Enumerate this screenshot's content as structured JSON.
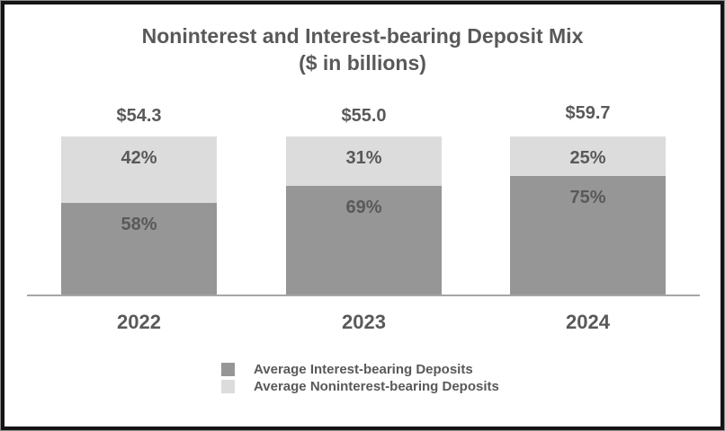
{
  "title": {
    "line1": "Noninterest and Interest-bearing Deposit Mix",
    "line2": "($ in billions)"
  },
  "chart_data": {
    "type": "bar",
    "variant": "100-percent-stacked-column",
    "title": "Noninterest and Interest-bearing Deposit Mix",
    "subtitle": "($ in billions)",
    "categories": [
      "2022",
      "2023",
      "2024"
    ],
    "totals": [
      54.3,
      55.0,
      59.7
    ],
    "total_labels": [
      "$54.3",
      "$55.0",
      "$59.7"
    ],
    "series": [
      {
        "name": "Average Interest-bearing Deposits",
        "values_pct": [
          58,
          69,
          75
        ],
        "color": "#969696"
      },
      {
        "name": "Average Noninterest-bearing Deposits",
        "values_pct": [
          42,
          31,
          25
        ],
        "color": "#DCDCDC"
      }
    ],
    "bars": [
      {
        "year": "2022",
        "total_label": "$54.3",
        "interest_pct": 58,
        "interest_label": "58%",
        "noninterest_pct": 42,
        "noninterest_label": "42%"
      },
      {
        "year": "2023",
        "total_label": "$55.0",
        "interest_pct": 69,
        "interest_label": "69%",
        "noninterest_pct": 31,
        "noninterest_label": "31%"
      },
      {
        "year": "2024",
        "total_label": "$59.7",
        "interest_pct": 75,
        "interest_label": "75%",
        "noninterest_pct": 25,
        "noninterest_label": "25%"
      }
    ],
    "legend_position": "bottom",
    "grid": false,
    "axis_line_color": "#A6A6A6"
  },
  "legend": {
    "items": [
      {
        "label": "Average Interest-bearing Deposits",
        "color": "#969696"
      },
      {
        "label": "Average Noninterest-bearing Deposits",
        "color": "#DCDCDC"
      }
    ]
  },
  "colors": {
    "text": "#595959",
    "interest_bar": "#969696",
    "noninterest_bar": "#DCDCDC",
    "axis_line": "#A6A6A6",
    "frame_border": "#141414",
    "background": "#FFFFFF"
  }
}
